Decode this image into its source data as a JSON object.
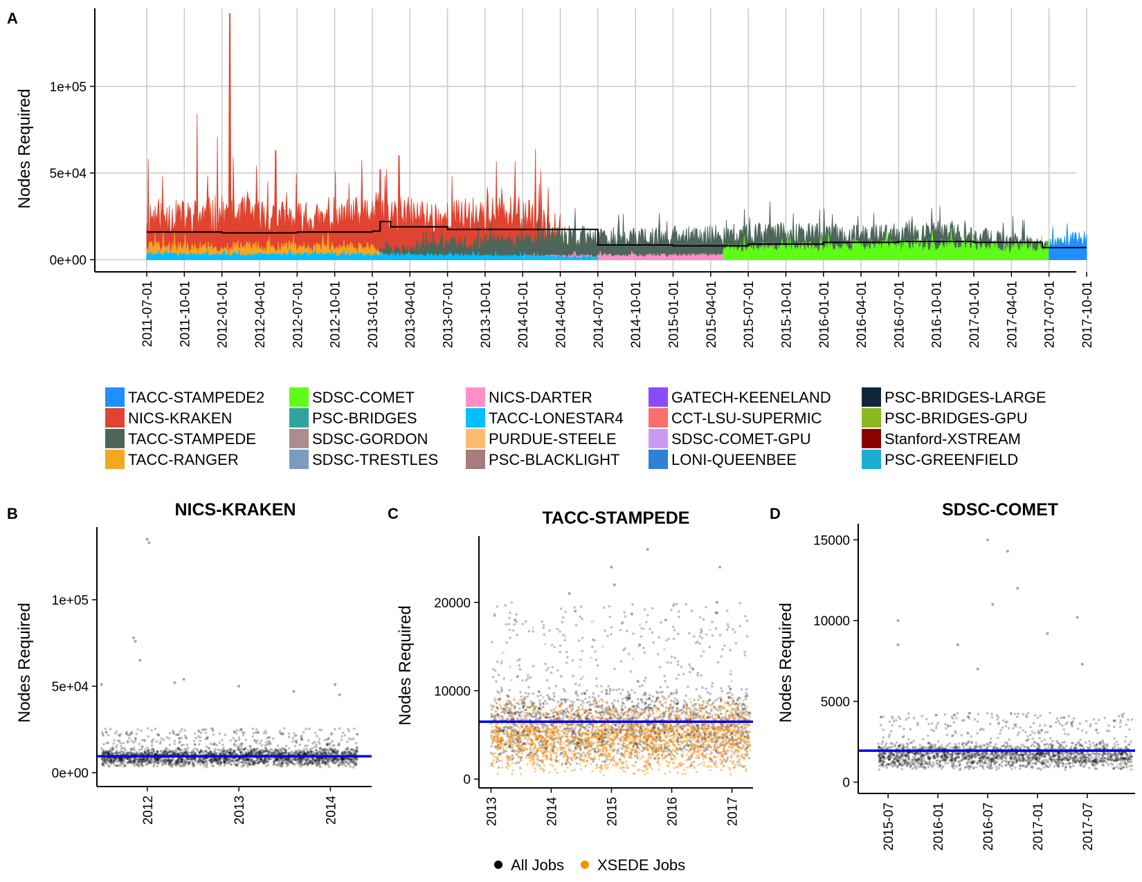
{
  "panel_letters": [
    "A",
    "B",
    "C",
    "D"
  ],
  "colors": {
    "trend_line": "#000000",
    "mean_line": "#0000ee",
    "all_jobs": "#000000",
    "xsede_jobs": "#ff8c00",
    "grid": "#c8c8c8"
  },
  "chart_data": [
    {
      "panel": "A",
      "type": "area",
      "title": "",
      "xlabel": "",
      "ylabel": "Nodes Required",
      "ylim": [
        -7000,
        145000
      ],
      "yticks": [
        0,
        50000,
        100000
      ],
      "ytick_labels": [
        "0e+00",
        "5e+04",
        "1e+05"
      ],
      "x_range": [
        "2011-07-01",
        "2017-10-01"
      ],
      "xtick_labels": [
        "2011-07-01",
        "2011-10-01",
        "2012-01-01",
        "2012-04-01",
        "2012-07-01",
        "2012-10-01",
        "2013-01-01",
        "2013-04-01",
        "2013-07-01",
        "2013-10-01",
        "2014-01-01",
        "2014-04-01",
        "2014-07-01",
        "2014-10-01",
        "2015-01-01",
        "2015-04-01",
        "2015-07-01",
        "2015-10-01",
        "2016-01-01",
        "2016-04-01",
        "2016-07-01",
        "2016-10-01",
        "2017-01-01",
        "2017-04-01",
        "2017-07-01",
        "2017-10-01"
      ],
      "grid": true,
      "legend_position": "bottom",
      "series": [
        {
          "name": "NICS-KRAKEN",
          "color": "#e0432f",
          "x": [
            "2011-07-01",
            "2011-10-01",
            "2012-01-01",
            "2012-04-01",
            "2012-07-01",
            "2012-10-01",
            "2013-01-01",
            "2013-04-01",
            "2013-07-01",
            "2013-10-01",
            "2014-01-01",
            "2014-04-01"
          ],
          "values": [
            25000,
            24000,
            26000,
            25000,
            23000,
            22000,
            27000,
            25000,
            24000,
            26000,
            25000,
            20000
          ],
          "peaks": [
            [
              "2011-07-05",
              58000
            ],
            [
              "2011-11-01",
              84000
            ],
            [
              "2011-12-20",
              71000
            ],
            [
              "2012-01-20",
              142000
            ],
            [
              "2012-05-10",
              63000
            ],
            [
              "2013-01-20",
              52000
            ],
            [
              "2013-03-05",
              60000
            ],
            [
              "2014-02-01",
              64000
            ]
          ]
        },
        {
          "name": "TACC-STAMPEDE",
          "color": "#4d6659",
          "x": [
            "2013-01-15",
            "2013-07-01",
            "2014-01-01",
            "2014-04-10",
            "2014-10-01",
            "2015-04-01",
            "2015-10-01",
            "2016-04-01",
            "2016-10-01",
            "2017-04-01",
            "2017-07-01"
          ],
          "values": [
            5000,
            9000,
            11000,
            14000,
            13000,
            14000,
            15000,
            14000,
            16000,
            11000,
            8000
          ],
          "peaks": [
            [
              "2016-10-10",
              31000
            ],
            [
              "2016-06-01",
              20000
            ]
          ]
        },
        {
          "name": "TACC-RANGER",
          "color": "#f5a623",
          "x": [
            "2011-07-01",
            "2012-01-01",
            "2012-07-01",
            "2013-01-01",
            "2013-02-15"
          ],
          "values": [
            8000,
            7000,
            8000,
            7000,
            0
          ]
        },
        {
          "name": "SDSC-COMET",
          "color": "#5ffc17",
          "x": [
            "2015-05-01",
            "2015-10-01",
            "2016-04-01",
            "2016-10-01",
            "2017-04-01",
            "2017-10-01"
          ],
          "values": [
            6000,
            7000,
            8000,
            8500,
            7000,
            6000
          ]
        },
        {
          "name": "TACC-STAMPEDE2",
          "color": "#1e90ff",
          "x": [
            "2017-07-01",
            "2017-10-01"
          ],
          "values": [
            9000,
            12000
          ],
          "peaks": [
            [
              "2017-08-15",
              21000
            ]
          ]
        },
        {
          "name": "NICS-DARTER",
          "color": "#ff8fc8",
          "x": [
            "2014-01-01",
            "2015-01-01",
            "2016-01-01",
            "2017-01-01"
          ],
          "values": [
            2000,
            2500,
            2500,
            2000
          ]
        },
        {
          "name": "TACC-LONESTAR4",
          "color": "#00bfff",
          "x": [
            "2011-07-01",
            "2012-07-01",
            "2013-07-01",
            "2014-07-01"
          ],
          "values": [
            3000,
            3000,
            2500,
            1500
          ]
        }
      ],
      "trend_line": {
        "x": [
          "2011-07-01",
          "2012-01-01",
          "2012-07-01",
          "2013-01-01",
          "2013-01-20",
          "2013-02-15",
          "2013-07-01",
          "2014-04-10",
          "2014-07-01",
          "2015-01-01",
          "2015-07-01",
          "2016-01-01",
          "2016-07-01",
          "2017-01-01",
          "2017-06-15",
          "2017-10-01"
        ],
        "values": [
          16000,
          15500,
          16000,
          16500,
          22000,
          19000,
          17500,
          17500,
          8500,
          8000,
          9000,
          10000,
          10500,
          10000,
          7000,
          7000
        ]
      },
      "legend": [
        {
          "name": "TACC-STAMPEDE2",
          "color": "#1e90ff"
        },
        {
          "name": "NICS-KRAKEN",
          "color": "#e0432f"
        },
        {
          "name": "TACC-STAMPEDE",
          "color": "#4d6659"
        },
        {
          "name": "TACC-RANGER",
          "color": "#f5a623"
        },
        {
          "name": "SDSC-COMET",
          "color": "#5ffc17"
        },
        {
          "name": "PSC-BRIDGES",
          "color": "#2fa59e"
        },
        {
          "name": "SDSC-GORDON",
          "color": "#ad8c8e"
        },
        {
          "name": "SDSC-TRESTLES",
          "color": "#7a9cc1"
        },
        {
          "name": "NICS-DARTER",
          "color": "#ff8fc8"
        },
        {
          "name": "TACC-LONESTAR4",
          "color": "#00bfff"
        },
        {
          "name": "PURDUE-STEELE",
          "color": "#ffbc6f"
        },
        {
          "name": "PSC-BLACKLIGHT",
          "color": "#a67c7c"
        },
        {
          "name": "GATECH-KEENELAND",
          "color": "#8a4bff"
        },
        {
          "name": "CCT-LSU-SUPERMIC",
          "color": "#fa6e6e"
        },
        {
          "name": "SDSC-COMET-GPU",
          "color": "#c99cf2"
        },
        {
          "name": "LONI-QUEENBEE",
          "color": "#2f80d6"
        },
        {
          "name": "PSC-BRIDGES-LARGE",
          "color": "#10263a"
        },
        {
          "name": "PSC-BRIDGES-GPU",
          "color": "#8ab820"
        },
        {
          "name": "Stanford-XSTREAM",
          "color": "#8b0000"
        },
        {
          "name": "PSC-GREENFIELD",
          "color": "#1aaed1"
        }
      ]
    },
    {
      "panel": "B",
      "type": "scatter",
      "title": "NICS-KRAKEN",
      "ylabel": "Nodes Required",
      "ylim": [
        -8000,
        142000
      ],
      "yticks": [
        0,
        50000,
        100000
      ],
      "ytick_labels": [
        "0e+00",
        "5e+04",
        "1e+05"
      ],
      "xlim": [
        2011.45,
        2014.45
      ],
      "xticks": [
        2012,
        2013,
        2014
      ],
      "xtick_labels": [
        "2012",
        "2013",
        "2014"
      ],
      "x_range": [
        2011.5,
        2014.3
      ],
      "typical_range": [
        3000,
        15000
      ],
      "outliers": [
        [
          2011.85,
          78000
        ],
        [
          2011.87,
          76000
        ],
        [
          2011.92,
          65000
        ],
        [
          2012.0,
          135000
        ],
        [
          2012.02,
          133000
        ],
        [
          2012.3,
          52000
        ],
        [
          2012.4,
          54000
        ],
        [
          2011.5,
          51000
        ],
        [
          2013.0,
          50000
        ],
        [
          2013.6,
          47000
        ],
        [
          2014.05,
          51000
        ],
        [
          2014.1,
          45000
        ]
      ],
      "mean": 9500,
      "series": [
        {
          "name": "All Jobs",
          "color": "#000000"
        }
      ]
    },
    {
      "panel": "C",
      "type": "scatter",
      "title": "TACC-STAMPEDE",
      "ylabel": "Nodes Required",
      "ylim": [
        -1000,
        27500
      ],
      "yticks": [
        0,
        10000,
        20000
      ],
      "ytick_labels": [
        "0",
        "10000",
        "20000"
      ],
      "xlim": [
        2012.8,
        2017.35
      ],
      "xticks": [
        2013,
        2014,
        2015,
        2016,
        2017
      ],
      "xtick_labels": [
        "2013",
        "2014",
        "2015",
        "2016",
        "2017"
      ],
      "x_range": [
        2013.0,
        2017.3
      ],
      "typical_range": [
        1000,
        11000
      ],
      "outliers": [
        [
          2014.3,
          21000
        ],
        [
          2014.4,
          19000
        ],
        [
          2015.0,
          24000
        ],
        [
          2015.05,
          22000
        ],
        [
          2015.6,
          26000
        ],
        [
          2016.8,
          24000
        ],
        [
          2016.75,
          20000
        ],
        [
          2013.4,
          18000
        ],
        [
          2015.9,
          18000
        ]
      ],
      "mean": 6500,
      "series": [
        {
          "name": "All Jobs",
          "color": "#000000"
        },
        {
          "name": "XSEDE Jobs",
          "color": "#ff8c00"
        }
      ]
    },
    {
      "panel": "D",
      "type": "scatter",
      "title": "SDSC-COMET",
      "ylabel": "Nodes Required",
      "ylim": [
        -700,
        16000
      ],
      "yticks": [
        0,
        5000,
        10000,
        15000
      ],
      "ytick_labels": [
        "0",
        "5000",
        "10000",
        "15000"
      ],
      "xlim": [
        2015.2,
        2017.98
      ],
      "xticks": [
        2015.5,
        2016.0,
        2016.5,
        2017.0,
        2017.5
      ],
      "xtick_labels": [
        "2015-07",
        "2016-01",
        "2016-07",
        "2017-01",
        "2017-07"
      ],
      "x_range": [
        2015.4,
        2017.95
      ],
      "typical_range": [
        700,
        2600
      ],
      "outliers": [
        [
          2015.6,
          10000
        ],
        [
          2015.6,
          8500
        ],
        [
          2016.5,
          15000
        ],
        [
          2016.7,
          14300
        ],
        [
          2016.8,
          12000
        ],
        [
          2016.55,
          11000
        ],
        [
          2017.4,
          10200
        ],
        [
          2017.45,
          7300
        ],
        [
          2016.2,
          8500
        ],
        [
          2017.1,
          9200
        ],
        [
          2016.4,
          7000
        ]
      ],
      "mean": 1950,
      "series": [
        {
          "name": "All Jobs",
          "color": "#000000"
        }
      ]
    }
  ]
}
